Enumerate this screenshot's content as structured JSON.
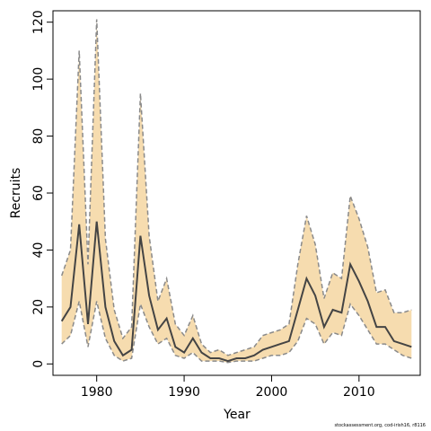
{
  "chart_data": {
    "type": "line",
    "title": "",
    "xlabel": "Year",
    "ylabel": "Recruits",
    "xlim": [
      1975,
      2017
    ],
    "ylim": [
      -4,
      124
    ],
    "xticks": [
      1980,
      1990,
      2000,
      2010
    ],
    "yticks": [
      0,
      20,
      40,
      60,
      80,
      100,
      120
    ],
    "grid": false,
    "legend": "none",
    "colors": {
      "band": "#f6dcaf",
      "line": "#444444",
      "bounds": "#8a8a8a"
    },
    "x": [
      1976,
      1977,
      1978,
      1979,
      1980,
      1981,
      1982,
      1983,
      1984,
      1985,
      1986,
      1987,
      1988,
      1989,
      1990,
      1991,
      1992,
      1993,
      1994,
      1995,
      1996,
      1997,
      1998,
      1999,
      2000,
      2001,
      2002,
      2003,
      2004,
      2005,
      2006,
      2007,
      2008,
      2009,
      2010,
      2011,
      2012,
      2013,
      2014,
      2015,
      2016
    ],
    "series": [
      {
        "role": "estimate",
        "style": "solid",
        "values": [
          15,
          20,
          49,
          14,
          50,
          20,
          8,
          3,
          5,
          45,
          24,
          12,
          16,
          6,
          4,
          9,
          4,
          2,
          2,
          1,
          2,
          2,
          3,
          5,
          6,
          7,
          8,
          19,
          30,
          24,
          13,
          19,
          18,
          35,
          29,
          22,
          13,
          13,
          8,
          7,
          6
        ]
      },
      {
        "role": "upper",
        "style": "dashed",
        "values": [
          31,
          40,
          110,
          35,
          121,
          44,
          19,
          9,
          13,
          95,
          45,
          22,
          30,
          14,
          10,
          17,
          7,
          4,
          5,
          3,
          4,
          5,
          6,
          10,
          11,
          12,
          14,
          35,
          52,
          42,
          23,
          32,
          30,
          59,
          51,
          41,
          25,
          26,
          18,
          18,
          19
        ]
      },
      {
        "role": "lower",
        "style": "dashed",
        "values": [
          7,
          10,
          22,
          6,
          22,
          9,
          3,
          1,
          2,
          21,
          13,
          7,
          9,
          3,
          2,
          4,
          1,
          1,
          1,
          0.5,
          1,
          1,
          1,
          2,
          3,
          3,
          4,
          8,
          16,
          14,
          7,
          11,
          10,
          21,
          17,
          12,
          7,
          7,
          5,
          3,
          2
        ]
      }
    ]
  },
  "footnote": "stockassessment.org, cod-irish16, r8116"
}
